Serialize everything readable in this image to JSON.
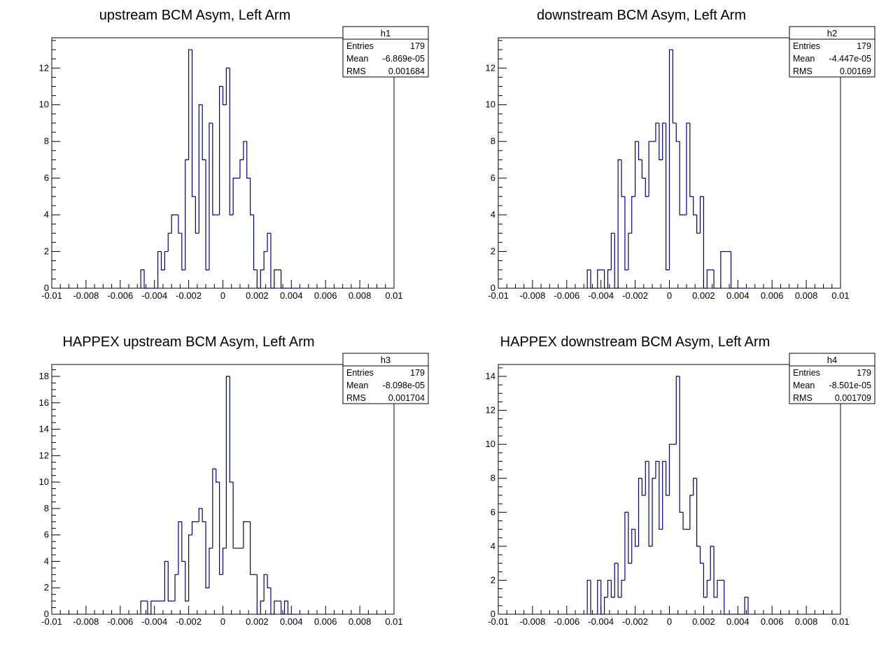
{
  "chart_data": [
    {
      "type": "histogram",
      "title": "upstream BCM Asym, Left Arm",
      "xlim": [
        -0.01,
        0.01
      ],
      "ylim": [
        0,
        13.65
      ],
      "bin_width": 0.0002,
      "bin_range": [
        -0.0048,
        0.0044
      ],
      "values": [
        1,
        0,
        0,
        0,
        0,
        2,
        1,
        2,
        3,
        4,
        4,
        3,
        1,
        7,
        13,
        5,
        3,
        10,
        7,
        1,
        9,
        4,
        4,
        11,
        10,
        12,
        4,
        6,
        6,
        7,
        8,
        6,
        4,
        1,
        0,
        1,
        2,
        3,
        0,
        1,
        1,
        0,
        0,
        0,
        0,
        0
      ],
      "x_ticks": [
        -0.01,
        -0.008,
        -0.006,
        -0.004,
        -0.002,
        0,
        0.002,
        0.004,
        0.006,
        0.008,
        0.01
      ],
      "x_tick_labels": [
        "-0.01",
        "-0.008",
        "-0.006",
        "-0.004",
        "-0.002",
        "0",
        "0.002",
        "0.004",
        "0.006",
        "0.008",
        "0.01"
      ],
      "y_ticks": [
        0,
        2,
        4,
        6,
        8,
        10,
        12
      ],
      "y_tick_labels": [
        "0",
        "2",
        "4",
        "6",
        "8",
        "10",
        "12"
      ],
      "stats": {
        "name": "h1",
        "rows": [
          {
            "label": "Entries",
            "value": "179"
          },
          {
            "label": "Mean",
            "value": "-6.869e-05"
          },
          {
            "label": "RMS",
            "value": "0.001684"
          }
        ]
      },
      "line_color": "#000080"
    },
    {
      "type": "histogram",
      "title": "downstream BCM Asym, Left Arm",
      "xlim": [
        -0.01,
        0.01
      ],
      "ylim": [
        0,
        13.65
      ],
      "bin_width": 0.0002,
      "bin_range": [
        -0.0048,
        0.0044
      ],
      "values": [
        1,
        0,
        0,
        1,
        1,
        0,
        1,
        3,
        0,
        7,
        5,
        1,
        3,
        5,
        8,
        7,
        6,
        5,
        8,
        8,
        9,
        7,
        9,
        1,
        13,
        9,
        8,
        4,
        4,
        9,
        5,
        4,
        3,
        5,
        0,
        1,
        1,
        0,
        0,
        2,
        2,
        2,
        0,
        0,
        0,
        0
      ],
      "x_ticks": [
        -0.01,
        -0.008,
        -0.006,
        -0.004,
        -0.002,
        0,
        0.002,
        0.004,
        0.006,
        0.008,
        0.01
      ],
      "x_tick_labels": [
        "-0.01",
        "-0.008",
        "-0.006",
        "-0.004",
        "-0.002",
        "0",
        "0.002",
        "0.004",
        "0.006",
        "0.008",
        "0.01"
      ],
      "y_ticks": [
        0,
        2,
        4,
        6,
        8,
        10,
        12
      ],
      "y_tick_labels": [
        "0",
        "2",
        "4",
        "6",
        "8",
        "10",
        "12"
      ],
      "stats": {
        "name": "h2",
        "rows": [
          {
            "label": "Entries",
            "value": "179"
          },
          {
            "label": "Mean",
            "value": "-4.447e-05"
          },
          {
            "label": "RMS",
            "value": "0.00169"
          }
        ]
      },
      "line_color": "#000080"
    },
    {
      "type": "histogram",
      "title": "HAPPEX upstream BCM Asym, Left Arm",
      "xlim": [
        -0.01,
        0.01
      ],
      "ylim": [
        0,
        18.9
      ],
      "bin_width": 0.0002,
      "bin_range": [
        -0.0048,
        0.0044
      ],
      "values": [
        1,
        1,
        0,
        1,
        1,
        1,
        1,
        4,
        1,
        1,
        3,
        7,
        4,
        1,
        6,
        7,
        7,
        8,
        7,
        2,
        5,
        11,
        10,
        3,
        5,
        18,
        10,
        5,
        5,
        5,
        7,
        7,
        3,
        3,
        0,
        1,
        3,
        2,
        0,
        1,
        1,
        0,
        1,
        0,
        0,
        0
      ],
      "x_ticks": [
        -0.01,
        -0.008,
        -0.006,
        -0.004,
        -0.002,
        0,
        0.002,
        0.004,
        0.006,
        0.008,
        0.01
      ],
      "x_tick_labels": [
        "-0.01",
        "-0.008",
        "-0.006",
        "-0.004",
        "-0.002",
        "0",
        "0.002",
        "0.004",
        "0.006",
        "0.008",
        "0.01"
      ],
      "y_ticks": [
        0,
        2,
        4,
        6,
        8,
        10,
        12,
        14,
        16,
        18
      ],
      "y_tick_labels": [
        "0",
        "2",
        "4",
        "6",
        "8",
        "10",
        "12",
        "14",
        "16",
        "18"
      ],
      "stats": {
        "name": "h3",
        "rows": [
          {
            "label": "Entries",
            "value": "179"
          },
          {
            "label": "Mean",
            "value": "-8.098e-05"
          },
          {
            "label": "RMS",
            "value": "0.001704"
          }
        ]
      },
      "line_color": "#000080"
    },
    {
      "type": "histogram",
      "title": "HAPPEX downstream BCM Asym, Left Arm",
      "xlim": [
        -0.01,
        0.01
      ],
      "ylim": [
        0,
        14.7
      ],
      "bin_width": 0.0002,
      "bin_range": [
        -0.0048,
        0.0044
      ],
      "values": [
        2,
        0,
        0,
        2,
        0,
        1,
        2,
        1,
        3,
        1,
        2,
        6,
        3,
        5,
        4,
        8,
        7,
        9,
        4,
        8,
        9,
        5,
        9,
        7,
        10,
        10,
        14,
        6,
        5,
        5,
        7,
        8,
        4,
        3,
        1,
        2,
        4,
        1,
        2,
        2,
        0,
        0,
        0,
        0,
        0,
        0,
        1
      ],
      "x_ticks": [
        -0.01,
        -0.008,
        -0.006,
        -0.004,
        -0.002,
        0,
        0.002,
        0.004,
        0.006,
        0.008,
        0.01
      ],
      "x_tick_labels": [
        "-0.01",
        "-0.008",
        "-0.006",
        "-0.004",
        "-0.002",
        "0",
        "0.002",
        "0.004",
        "0.006",
        "0.008",
        "0.01"
      ],
      "y_ticks": [
        0,
        2,
        4,
        6,
        8,
        10,
        12,
        14
      ],
      "y_tick_labels": [
        "0",
        "2",
        "4",
        "6",
        "8",
        "10",
        "12",
        "14"
      ],
      "stats": {
        "name": "h4",
        "rows": [
          {
            "label": "Entries",
            "value": "179"
          },
          {
            "label": "Mean",
            "value": "-8.501e-05"
          },
          {
            "label": "RMS",
            "value": "0.001709"
          }
        ]
      },
      "line_color": "#000080"
    }
  ]
}
